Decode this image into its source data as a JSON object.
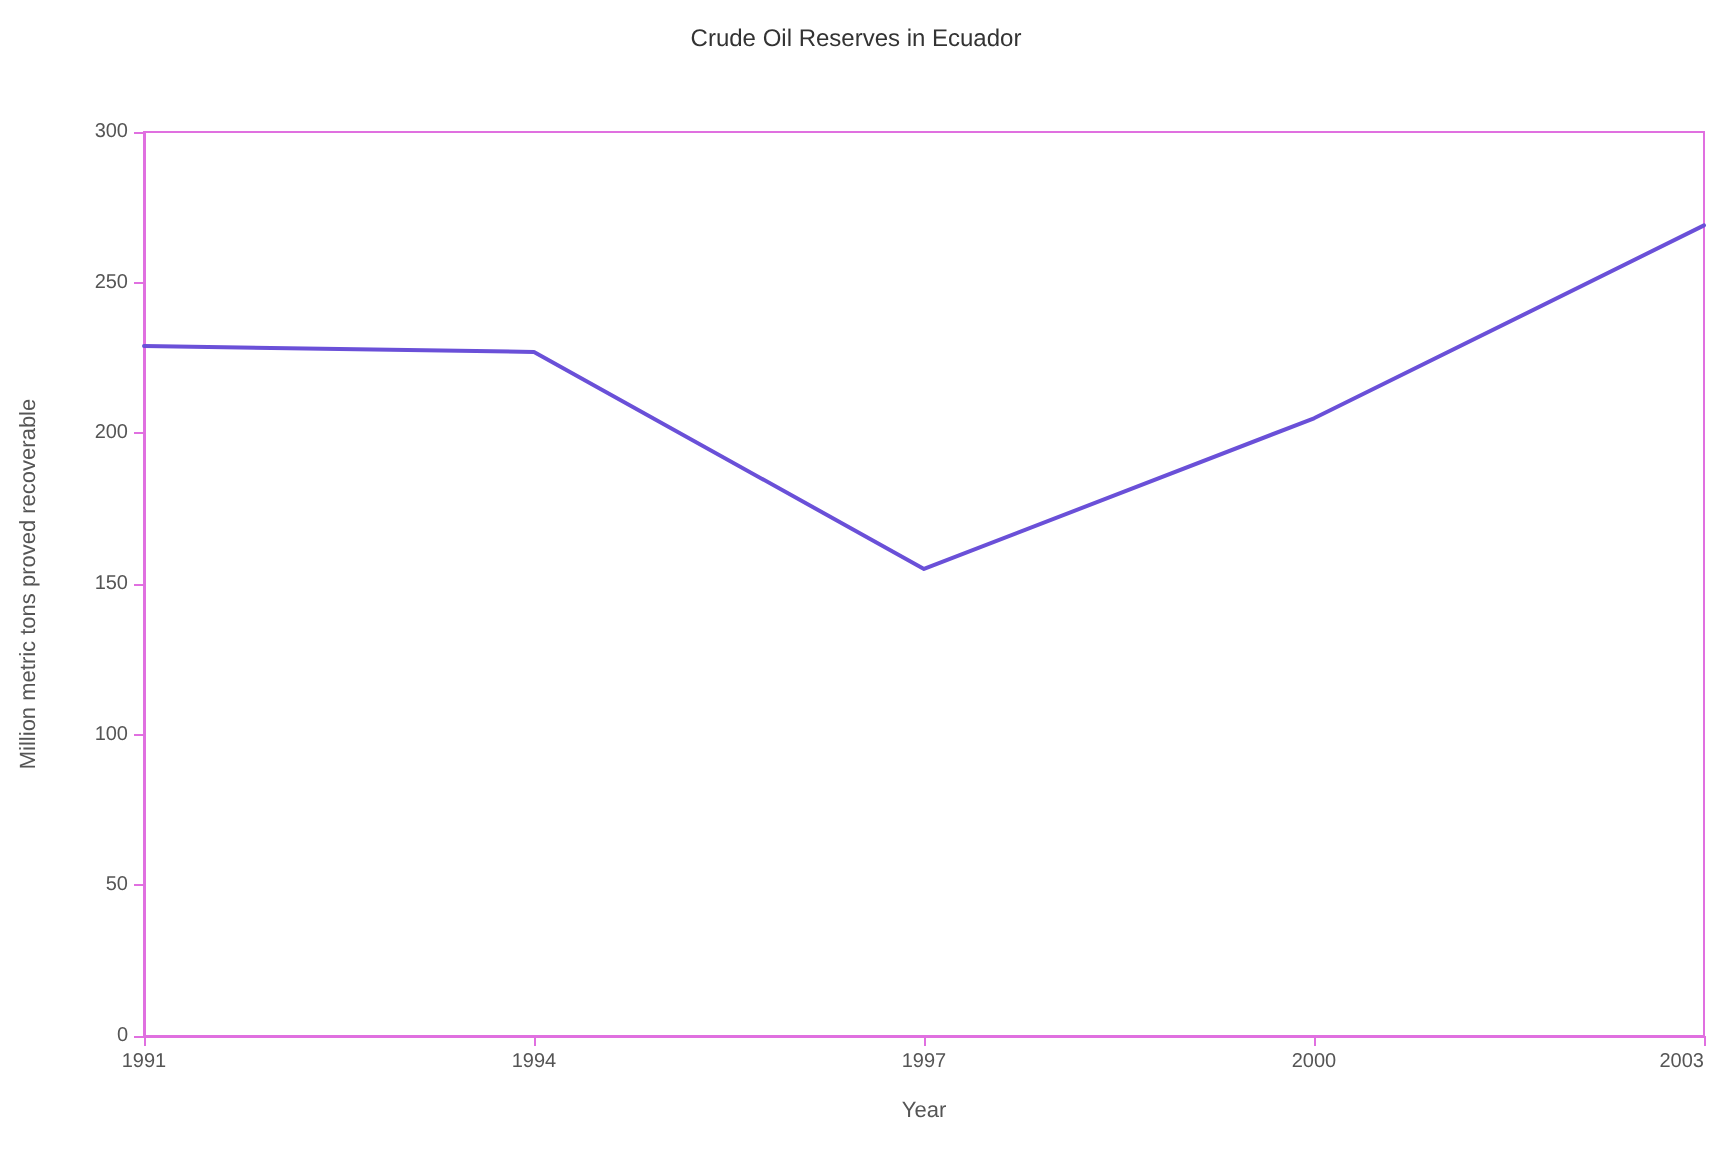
{
  "chart_data": {
    "type": "line",
    "title": "Crude Oil Reserves in Ecuador",
    "xlabel": "Year",
    "ylabel": "Million metric tons proved recoverable",
    "x": [
      1991,
      1994,
      1997,
      2000,
      2003
    ],
    "xlim": [
      1991,
      2003
    ],
    "xticks": [
      1991,
      1994,
      1997,
      2000,
      2003
    ],
    "series": [
      {
        "color": "#6a50d8",
        "values": [
          229,
          227,
          155,
          205,
          269
        ]
      }
    ],
    "ylim": [
      0,
      300
    ],
    "yticks": [
      0,
      50,
      100,
      150,
      200,
      250,
      300
    ],
    "grid": false,
    "marker": "none",
    "line_style": "solid"
  }
}
